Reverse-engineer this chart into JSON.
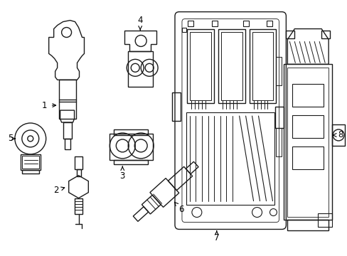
{
  "background_color": "#ffffff",
  "line_color": "#1a1a1a",
  "line_width": 1.0,
  "label_fontsize": 8.5,
  "fig_w": 4.89,
  "fig_h": 3.6,
  "dpi": 100
}
